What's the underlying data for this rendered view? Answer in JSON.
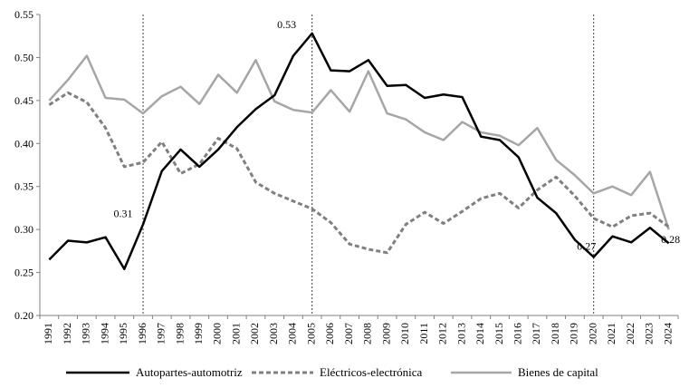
{
  "chart_data": {
    "type": "line",
    "x": [
      "1991",
      "1992",
      "1993",
      "1994",
      "1995",
      "1996",
      "1997",
      "1998",
      "1999",
      "2000",
      "2001",
      "2002",
      "2003",
      "2004",
      "2005",
      "2006",
      "2007",
      "2008",
      "2009",
      "2010",
      "2011",
      "2012",
      "2013",
      "2014",
      "2015",
      "2016",
      "2017",
      "2018",
      "2019",
      "2020",
      "2021",
      "2022",
      "2023",
      "2024"
    ],
    "ylim": [
      0.2,
      0.55
    ],
    "yticks": [
      "0.20",
      "0.25",
      "0.30",
      "0.35",
      "0.40",
      "0.45",
      "0.50",
      "0.55"
    ],
    "grid": false,
    "legend_position": "bottom",
    "series": [
      {
        "name": "Autopartes-automotriz",
        "color": "#000000",
        "style": "solid",
        "values": [
          0.265,
          0.287,
          0.285,
          0.291,
          0.254,
          0.306,
          0.368,
          0.393,
          0.373,
          0.393,
          0.419,
          0.44,
          0.456,
          0.502,
          0.528,
          0.485,
          0.484,
          0.497,
          0.467,
          0.468,
          0.453,
          0.457,
          0.454,
          0.408,
          0.404,
          0.384,
          0.337,
          0.319,
          0.288,
          0.268,
          0.292,
          0.285,
          0.302,
          0.284
        ]
      },
      {
        "name": "Eléctricos-electrónica",
        "color": "#808080",
        "style": "dashed",
        "values": [
          0.445,
          0.459,
          0.448,
          0.418,
          0.373,
          0.378,
          0.402,
          0.365,
          0.376,
          0.406,
          0.394,
          0.355,
          0.342,
          0.333,
          0.324,
          0.308,
          0.283,
          0.277,
          0.273,
          0.306,
          0.32,
          0.307,
          0.321,
          0.336,
          0.342,
          0.325,
          0.346,
          0.361,
          0.339,
          0.313,
          0.303,
          0.316,
          0.319,
          0.303
        ]
      },
      {
        "name": "Bienes de capital",
        "color": "#a6a6a6",
        "style": "solid",
        "values": [
          0.45,
          0.474,
          0.502,
          0.453,
          0.451,
          0.435,
          0.455,
          0.466,
          0.446,
          0.48,
          0.459,
          0.497,
          0.449,
          0.439,
          0.436,
          0.462,
          0.437,
          0.484,
          0.435,
          0.428,
          0.413,
          0.404,
          0.425,
          0.413,
          0.409,
          0.398,
          0.418,
          0.381,
          0.363,
          0.342,
          0.35,
          0.34,
          0.367,
          0.3
        ]
      }
    ],
    "vertical_markers": [
      "1996",
      "2005",
      "2020"
    ],
    "annotations": [
      {
        "x": "1996",
        "text": "0.31"
      },
      {
        "x": "2005",
        "text": "0.53"
      },
      {
        "x": "2020",
        "text": "0.27"
      },
      {
        "x": "2024",
        "text": "0.28"
      }
    ]
  }
}
